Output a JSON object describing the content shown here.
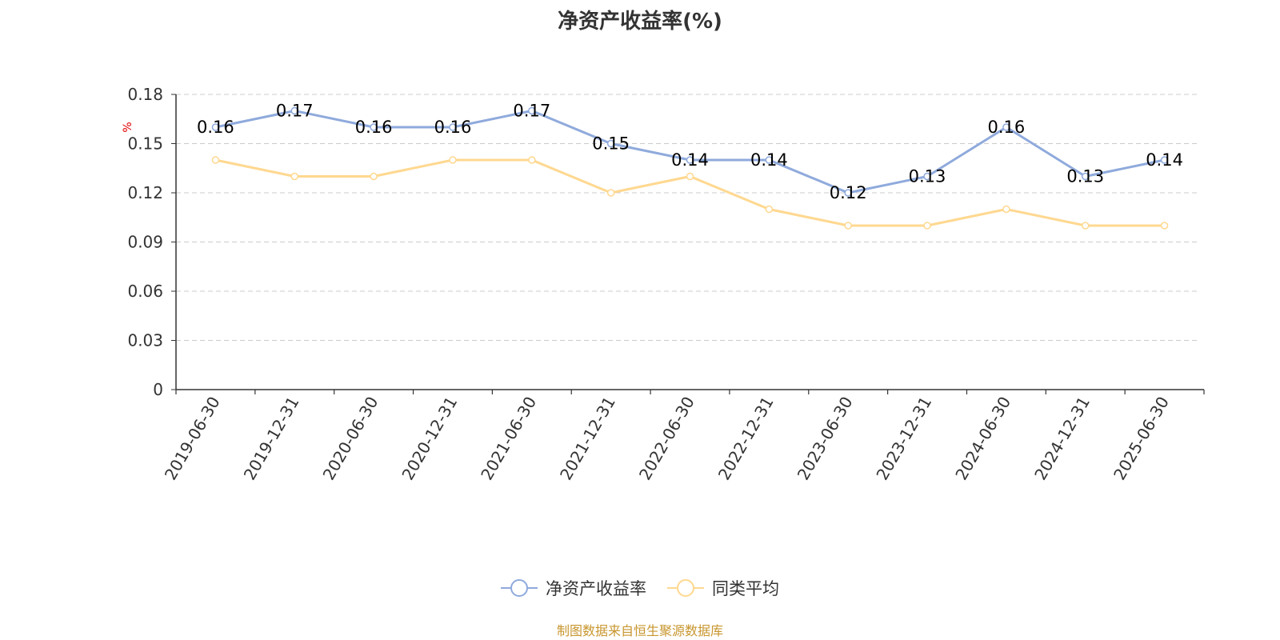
{
  "title": "净资产收益率(%)",
  "source": "制图数据来自恒生聚源数据库",
  "chart_data": {
    "type": "line",
    "title": "净资产收益率(%)",
    "ylabel": "%",
    "xlabel": "",
    "categories": [
      "2019-06-30",
      "2019-12-31",
      "2020-06-30",
      "2020-12-31",
      "2021-06-30",
      "2021-12-31",
      "2022-06-30",
      "2022-12-31",
      "2023-06-30",
      "2023-12-31",
      "2024-06-30",
      "2024-12-31",
      "2025-06-30"
    ],
    "ylim": [
      0,
      0.18
    ],
    "yticks": [
      "0",
      "0.03",
      "0.06",
      "0.09",
      "0.12",
      "0.15",
      "0.18"
    ],
    "grid": true,
    "legend_position": "bottom",
    "series": [
      {
        "name": "净资产收益率",
        "color": "#8faadc",
        "values": [
          0.16,
          0.17,
          0.16,
          0.16,
          0.17,
          0.15,
          0.14,
          0.14,
          0.12,
          0.13,
          0.16,
          0.13,
          0.14
        ],
        "labels": [
          "0.16",
          "0.17",
          "0.16",
          "0.16",
          "0.17",
          "0.15",
          "0.14",
          "0.14",
          "0.12",
          "0.13",
          "0.16",
          "0.13",
          "0.14"
        ]
      },
      {
        "name": "同类平均",
        "color": "#ffd890",
        "values": [
          0.14,
          0.13,
          0.13,
          0.14,
          0.14,
          0.12,
          0.13,
          0.11,
          0.1,
          0.1,
          0.11,
          0.1,
          0.1
        ]
      }
    ]
  }
}
